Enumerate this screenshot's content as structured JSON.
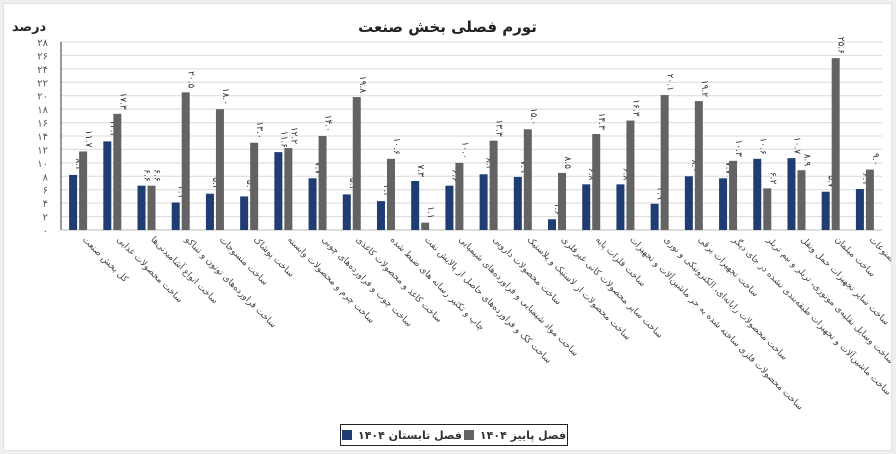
{
  "chart_data": {
    "type": "bar",
    "title": "تورم فصلی بخش صنعت",
    "xlabel": "",
    "ylabel": "درصد",
    "ylim": [
      0,
      28
    ],
    "yticks": [
      0,
      2,
      4,
      6,
      8,
      10,
      12,
      14,
      16,
      18,
      20,
      22,
      24,
      26,
      28
    ],
    "ytick_labels": [
      "۰",
      "۲",
      "۴",
      "۶",
      "۸",
      "۱۰",
      "۱۲",
      "۱۴",
      "۱۶",
      "۱۸",
      "۲۰",
      "۲۲",
      "۲۴",
      "۲۶",
      "۲۸"
    ],
    "grid": true,
    "legend_position": "bottom",
    "categories": [
      "کل بخش صنعت",
      "ساخت محصولات غذایی",
      "ساخت انواع آشامیدنی‌ها",
      "ساخت فراورده‌های توتون و تنباکو",
      "ساخت منسوجات",
      "ساخت پوشاک",
      "ساخت چرم و محصولات وابسته",
      "ساخت چوب و فراورده‌های چوبی",
      "ساخت کاغذ و محصولات کاغذی",
      "چاپ و تکثیر رسانه های ضبط شده",
      "ساخت کک و فراورده‌های حاصل از پالایش نفت",
      "ساخت مواد شیمیایی و فراورده‌های شیمیایی",
      "ساخت محصولات دارویی",
      "ساخت محصولات از لاستیک و پلاستیک",
      "ساخت سایر محصولات کانی غیرفلزی",
      "ساخت فلزات پایه",
      "ساخت محصولات فلزی ساخته شده به جز ماشین‌آلات و تجهیزات",
      "ساخت محصولات رایانه‌ای، الکترونیکی و نوری",
      "ساخت تجهیزات برقی",
      "ساخت ماشین‌آلات و تجهیزات طبقه‌بندی نشده در جای دیگر",
      "ساخت وسایل نقلیه‌ی موتوری، تریلر و نیم تریلر",
      "ساخت سایر تجهیزات حمل ونقل",
      "ساخت مبلمان",
      "ساخت سایر مصنوعات"
    ],
    "series": [
      {
        "name": "فصل تابستان ۱۴۰۴",
        "color": "#1f3c73",
        "values": [
          8.2,
          13.2,
          6.6,
          4.1,
          5.4,
          5.0,
          11.6,
          7.7,
          5.3,
          4.3,
          7.3,
          6.6,
          8.3,
          7.9,
          1.6,
          6.8,
          6.8,
          3.9,
          8.0,
          7.7,
          10.6,
          10.7,
          5.7,
          6.1
        ]
      },
      {
        "name": "فصل پاییز ۱۴۰۴",
        "color": "#636363",
        "values": [
          11.7,
          17.3,
          6.6,
          20.5,
          18.0,
          13.0,
          12.2,
          14.0,
          19.8,
          10.6,
          1.1,
          10.0,
          13.3,
          15.0,
          8.5,
          14.3,
          16.3,
          20.1,
          19.2,
          10.3,
          6.2,
          8.9,
          25.6,
          9.0
        ]
      }
    ]
  },
  "legend": {
    "autumn_label": "فصل پاییز ۱۴۰۴",
    "summer_label": "فصل تابستان ۱۴۰۴"
  }
}
